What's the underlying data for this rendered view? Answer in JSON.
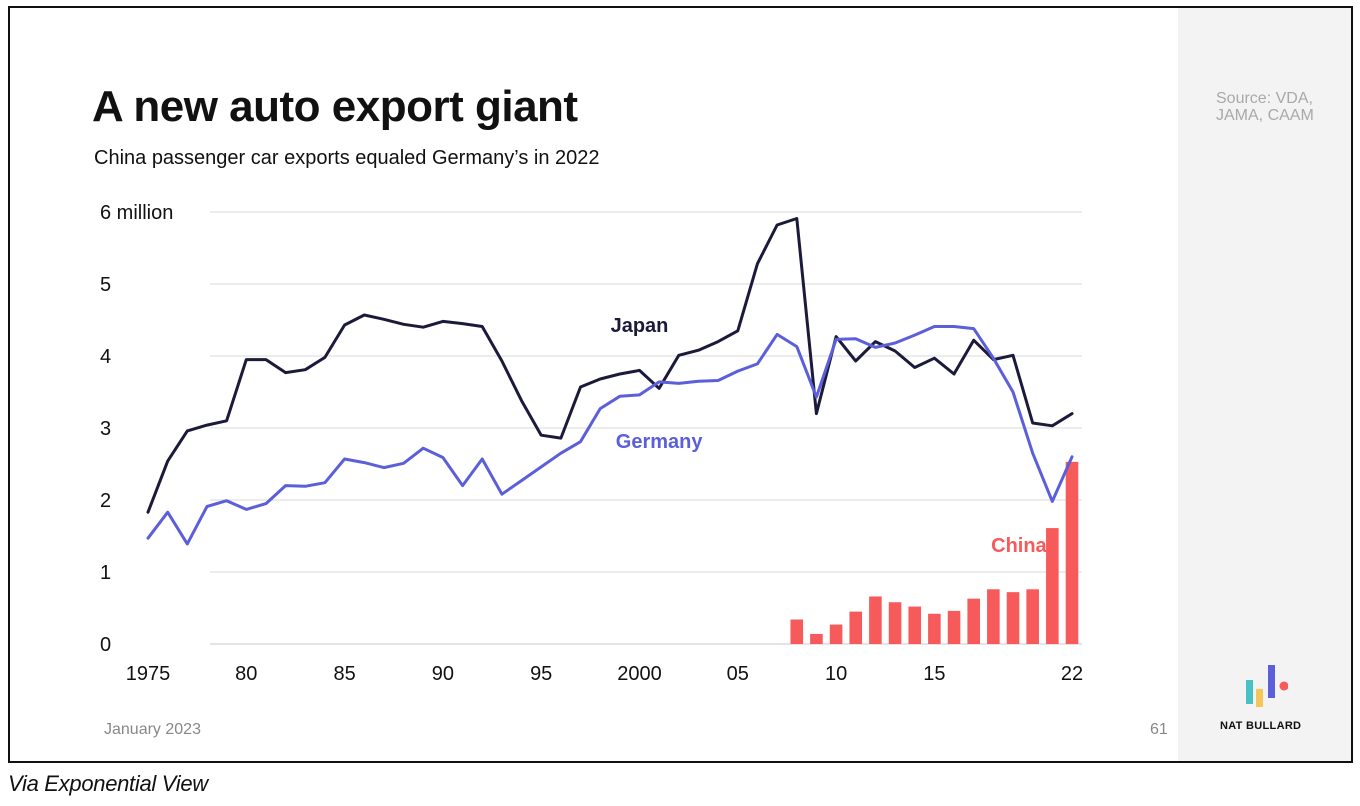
{
  "title": "A new auto export giant",
  "subtitle": "China passenger car exports equaled Germany’s in 2022",
  "source": "Source: VDA, JAMA, CAAM",
  "footer_date": "January 2023",
  "page_number": "61",
  "brand": "NAT BULLARD",
  "caption": "Via Exponential View",
  "colors": {
    "japan": "#1c1a3b",
    "germany": "#5b5fd9",
    "china": "#f75a5a",
    "grid": "#d9d9d9"
  },
  "chart_data": {
    "type": "line",
    "ylim": [
      0,
      6
    ],
    "xlim": [
      1975,
      2022
    ],
    "y_ticks": [
      {
        "value": 0,
        "label": "0"
      },
      {
        "value": 1,
        "label": "1"
      },
      {
        "value": 2,
        "label": "2"
      },
      {
        "value": 3,
        "label": "3"
      },
      {
        "value": 4,
        "label": "4"
      },
      {
        "value": 5,
        "label": "5"
      },
      {
        "value": 6,
        "label": "6 million"
      }
    ],
    "x_ticks": [
      {
        "value": 1975,
        "label": "1975"
      },
      {
        "value": 1980,
        "label": "80"
      },
      {
        "value": 1985,
        "label": "85"
      },
      {
        "value": 1990,
        "label": "90"
      },
      {
        "value": 1995,
        "label": "95"
      },
      {
        "value": 2000,
        "label": "2000"
      },
      {
        "value": 2005,
        "label": "05"
      },
      {
        "value": 2010,
        "label": "10"
      },
      {
        "value": 2015,
        "label": "15"
      },
      {
        "value": 2022,
        "label": "22"
      }
    ],
    "grid": true,
    "series": [
      {
        "name": "Japan",
        "kind": "line",
        "color": "#1c1a3b",
        "x": [
          1975,
          1976,
          1977,
          1978,
          1979,
          1980,
          1981,
          1982,
          1983,
          1984,
          1985,
          1986,
          1987,
          1988,
          1989,
          1990,
          1991,
          1992,
          1993,
          1994,
          1995,
          1996,
          1997,
          1998,
          1999,
          2000,
          2001,
          2002,
          2003,
          2004,
          2005,
          2006,
          2007,
          2008,
          2009,
          2010,
          2011,
          2012,
          2013,
          2014,
          2015,
          2016,
          2017,
          2018,
          2019,
          2020,
          2021,
          2022
        ],
        "y": [
          1.83,
          2.54,
          2.96,
          3.04,
          3.1,
          3.95,
          3.95,
          3.77,
          3.81,
          3.98,
          4.43,
          4.57,
          4.51,
          4.44,
          4.4,
          4.48,
          4.45,
          4.41,
          3.93,
          3.38,
          2.9,
          2.86,
          3.57,
          3.68,
          3.75,
          3.8,
          3.55,
          4.01,
          4.08,
          4.2,
          4.35,
          5.28,
          5.82,
          5.91,
          3.2,
          4.27,
          3.93,
          4.2,
          4.07,
          3.84,
          3.97,
          3.75,
          4.22,
          3.95,
          4.01,
          3.07,
          3.03,
          3.2
        ]
      },
      {
        "name": "Germany",
        "kind": "line",
        "color": "#5b5fd9",
        "x": [
          1975,
          1976,
          1977,
          1978,
          1979,
          1980,
          1981,
          1982,
          1983,
          1984,
          1985,
          1986,
          1987,
          1988,
          1989,
          1990,
          1991,
          1992,
          1993,
          1994,
          1995,
          1996,
          1997,
          1998,
          1999,
          2000,
          2001,
          2002,
          2003,
          2004,
          2005,
          2006,
          2007,
          2008,
          2009,
          2010,
          2011,
          2012,
          2013,
          2014,
          2015,
          2016,
          2017,
          2018,
          2019,
          2020,
          2021,
          2022
        ],
        "y": [
          1.47,
          1.83,
          1.39,
          1.91,
          1.99,
          1.87,
          1.95,
          2.2,
          2.19,
          2.24,
          2.57,
          2.52,
          2.45,
          2.51,
          2.72,
          2.59,
          2.2,
          2.57,
          2.08,
          2.27,
          2.46,
          2.65,
          2.81,
          3.27,
          3.44,
          3.46,
          3.64,
          3.62,
          3.65,
          3.66,
          3.79,
          3.89,
          4.3,
          4.13,
          3.43,
          4.23,
          4.24,
          4.12,
          4.18,
          4.29,
          4.41,
          4.41,
          4.38,
          3.97,
          3.5,
          2.65,
          1.98,
          2.6
        ]
      },
      {
        "name": "China",
        "kind": "bar",
        "color": "#f75a5a",
        "x": [
          2008,
          2009,
          2010,
          2011,
          2012,
          2013,
          2014,
          2015,
          2016,
          2017,
          2018,
          2019,
          2020,
          2021,
          2022
        ],
        "y": [
          0.34,
          0.14,
          0.27,
          0.45,
          0.66,
          0.58,
          0.52,
          0.42,
          0.46,
          0.63,
          0.76,
          0.72,
          0.76,
          1.61,
          2.53
        ]
      }
    ],
    "labels": [
      {
        "series": "Japan",
        "text": "Japan"
      },
      {
        "series": "Germany",
        "text": "Germany"
      },
      {
        "series": "China",
        "text": "China"
      }
    ]
  }
}
